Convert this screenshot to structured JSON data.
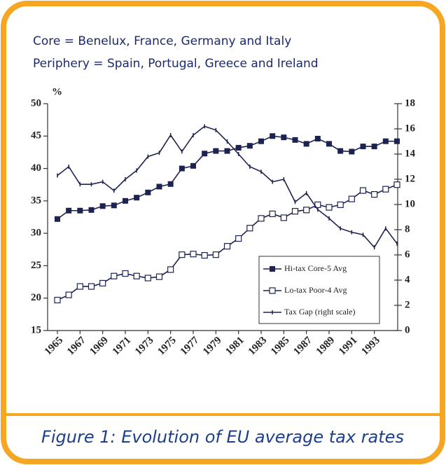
{
  "notes": [
    "Core = Benelux, France, Germany and Italy",
    "Periphery = Spain, Portugal, Greece and Ireland"
  ],
  "caption": "Figure 1: Evolution of EU average tax rates",
  "chart_data": {
    "type": "line",
    "y_label": "%",
    "x": [
      1965,
      1966,
      1967,
      1968,
      1969,
      1970,
      1971,
      1972,
      1973,
      1974,
      1975,
      1976,
      1977,
      1978,
      1979,
      1980,
      1981,
      1982,
      1983,
      1984,
      1985,
      1986,
      1987,
      1988,
      1989,
      1990,
      1991,
      1992,
      1993,
      1994,
      1995
    ],
    "xlim": [
      1965,
      1995
    ],
    "xticks": [
      1965,
      1967,
      1969,
      1971,
      1973,
      1975,
      1977,
      1979,
      1981,
      1983,
      1985,
      1987,
      1989,
      1991,
      1993
    ],
    "ylim": [
      15,
      50
    ],
    "yticks": [
      15,
      20,
      25,
      30,
      35,
      40,
      45,
      50
    ],
    "y2lim": [
      0,
      18
    ],
    "y2ticks": [
      0,
      2,
      4,
      6,
      8,
      10,
      12,
      14,
      16,
      18
    ],
    "series": [
      {
        "name": "Hi-tax Core-5 Avg",
        "color": "#1c2350",
        "marker": "filled-square",
        "values": [
          32.2,
          33.5,
          33.5,
          33.6,
          34.2,
          34.3,
          35.0,
          35.5,
          36.3,
          37.2,
          37.6,
          40.0,
          40.4,
          42.3,
          42.7,
          42.7,
          43.2,
          43.5,
          44.2,
          45.0,
          44.8,
          44.4,
          43.8,
          44.6,
          43.8,
          42.7,
          42.6,
          43.4,
          43.4,
          44.2,
          44.2
        ]
      },
      {
        "name": "Lo-tax Poor-4 Avg",
        "color": "#1c2350",
        "marker": "open-square",
        "values": [
          19.7,
          20.5,
          21.8,
          21.8,
          22.3,
          23.4,
          23.8,
          23.4,
          23.1,
          23.3,
          24.4,
          26.7,
          26.8,
          26.6,
          26.7,
          28.0,
          29.2,
          30.8,
          32.3,
          33.0,
          32.4,
          33.4,
          33.6,
          34.4,
          34.0,
          34.4,
          35.3,
          36.6,
          36.0,
          36.8,
          37.5
        ]
      },
      {
        "name": "Tax Gap (right scale)",
        "color": "#1c2350",
        "marker": "tick",
        "axis": "y2",
        "values": [
          12.3,
          13.0,
          11.6,
          11.6,
          11.8,
          11.1,
          12.0,
          12.7,
          13.8,
          14.1,
          15.5,
          14.2,
          15.5,
          16.2,
          15.9,
          15.0,
          14.0,
          13.0,
          12.6,
          11.8,
          12.0,
          10.2,
          10.9,
          9.6,
          8.9,
          8.1,
          7.8,
          7.6,
          6.6,
          8.1,
          6.9
        ]
      }
    ]
  }
}
